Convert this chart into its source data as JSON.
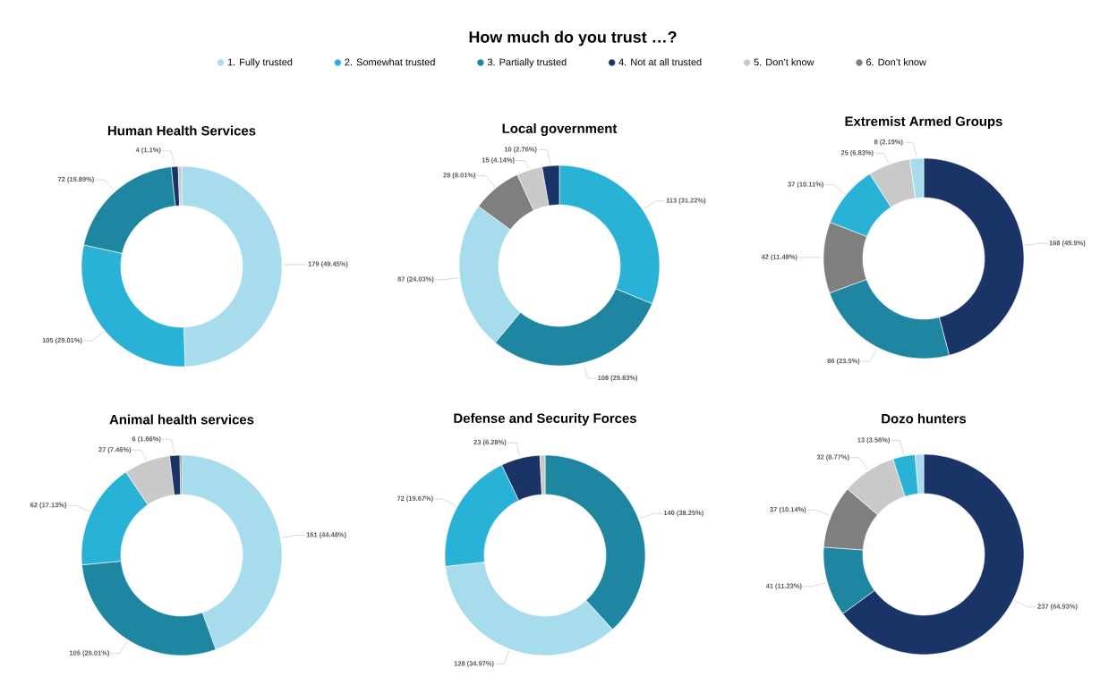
{
  "chart_data": [
    {
      "type": "other",
      "title": "How much do you trust …?",
      "categories": [
        "1. Fully trusted",
        "2. Somewhat trusted",
        "3. Partially trusted",
        "4. Not at all trusted",
        "5. Don’t know",
        "6. Don’t know"
      ],
      "colors": [
        "#a6dcec",
        "#29b1d6",
        "#1e86a0",
        "#1b3468",
        "#c9c9c9",
        "#7f7f7f"
      ]
    },
    {
      "type": "donut",
      "title": "Human Health Services",
      "categories": [
        null,
        null,
        null,
        null,
        null
      ],
      "values": [
        179,
        105,
        72,
        4,
        2
      ],
      "colors": [
        "#a6dcec",
        "#29b1d6",
        "#1e86a0",
        "#1b3468",
        "#c9c9c9"
      ],
      "value_labels": [
        "179 (49.45%)",
        "105 (29.01%)",
        "72 (19.89%)",
        "4 (1.1%)",
        null
      ]
    },
    {
      "type": "donut",
      "title": "Local government",
      "categories": [
        null,
        null,
        null,
        null,
        null,
        null
      ],
      "values": [
        113,
        108,
        87,
        29,
        15,
        10
      ],
      "colors": [
        "#29b1d6",
        "#1e86a0",
        "#a6dcec",
        "#7f7f7f",
        "#c9c9c9",
        "#1b3468"
      ],
      "value_labels": [
        "113 (31.22%)",
        "108 (29.83%)",
        "87 (24.03%)",
        "29 (8.01%)",
        "15 (4.14%)",
        "10 (2.76%)"
      ]
    },
    {
      "type": "donut",
      "title": "Extremist Armed Groups",
      "categories": [
        null,
        null,
        null,
        null,
        null,
        null
      ],
      "values": [
        168,
        86,
        42,
        37,
        25,
        8
      ],
      "colors": [
        "#1b3468",
        "#1e86a0",
        "#7f7f7f",
        "#29b1d6",
        "#c9c9c9",
        "#a6dcec"
      ],
      "value_labels": [
        "168 (45.9%)",
        "86 (23.5%)",
        "42 (11.48%)",
        "37 (10.11%)",
        "25 (6.83%)",
        "8 (2.19%)"
      ]
    },
    {
      "type": "donut",
      "title": "Animal health services",
      "categories": [
        null,
        null,
        null,
        null,
        null,
        null
      ],
      "values": [
        161,
        105,
        62,
        27,
        6,
        1
      ],
      "colors": [
        "#a6dcec",
        "#1e86a0",
        "#29b1d6",
        "#c9c9c9",
        "#1b3468",
        "#7f7f7f"
      ],
      "value_labels": [
        "161 (44.48%)",
        "105 (29.01%)",
        "62 (17.13%)",
        "27 (7.46%)",
        "6 (1.66%)",
        null
      ]
    },
    {
      "type": "donut",
      "title": "Defense and Security Forces",
      "categories": [
        null,
        null,
        null,
        null,
        null
      ],
      "values": [
        140,
        128,
        72,
        23,
        3
      ],
      "colors": [
        "#1e86a0",
        "#a6dcec",
        "#29b1d6",
        "#1b3468",
        "#c9c9c9"
      ],
      "value_labels": [
        "140 (38.25%)",
        "128 (34.97%)",
        "72 (19.67%)",
        "23 (6.28%)",
        null
      ]
    },
    {
      "type": "donut",
      "title": "Dozo hunters",
      "categories": [
        null,
        null,
        null,
        null,
        null,
        null
      ],
      "values": [
        237,
        41,
        37,
        32,
        13,
        5
      ],
      "colors": [
        "#1b3468",
        "#1e86a0",
        "#7f7f7f",
        "#c9c9c9",
        "#29b1d6",
        "#a6dcec"
      ],
      "value_labels": [
        "237 (64.93%)",
        "41 (11.23%)",
        "37 (10.14%)",
        "32 (8.77%)",
        "13 (3.56%)",
        null
      ]
    }
  ]
}
